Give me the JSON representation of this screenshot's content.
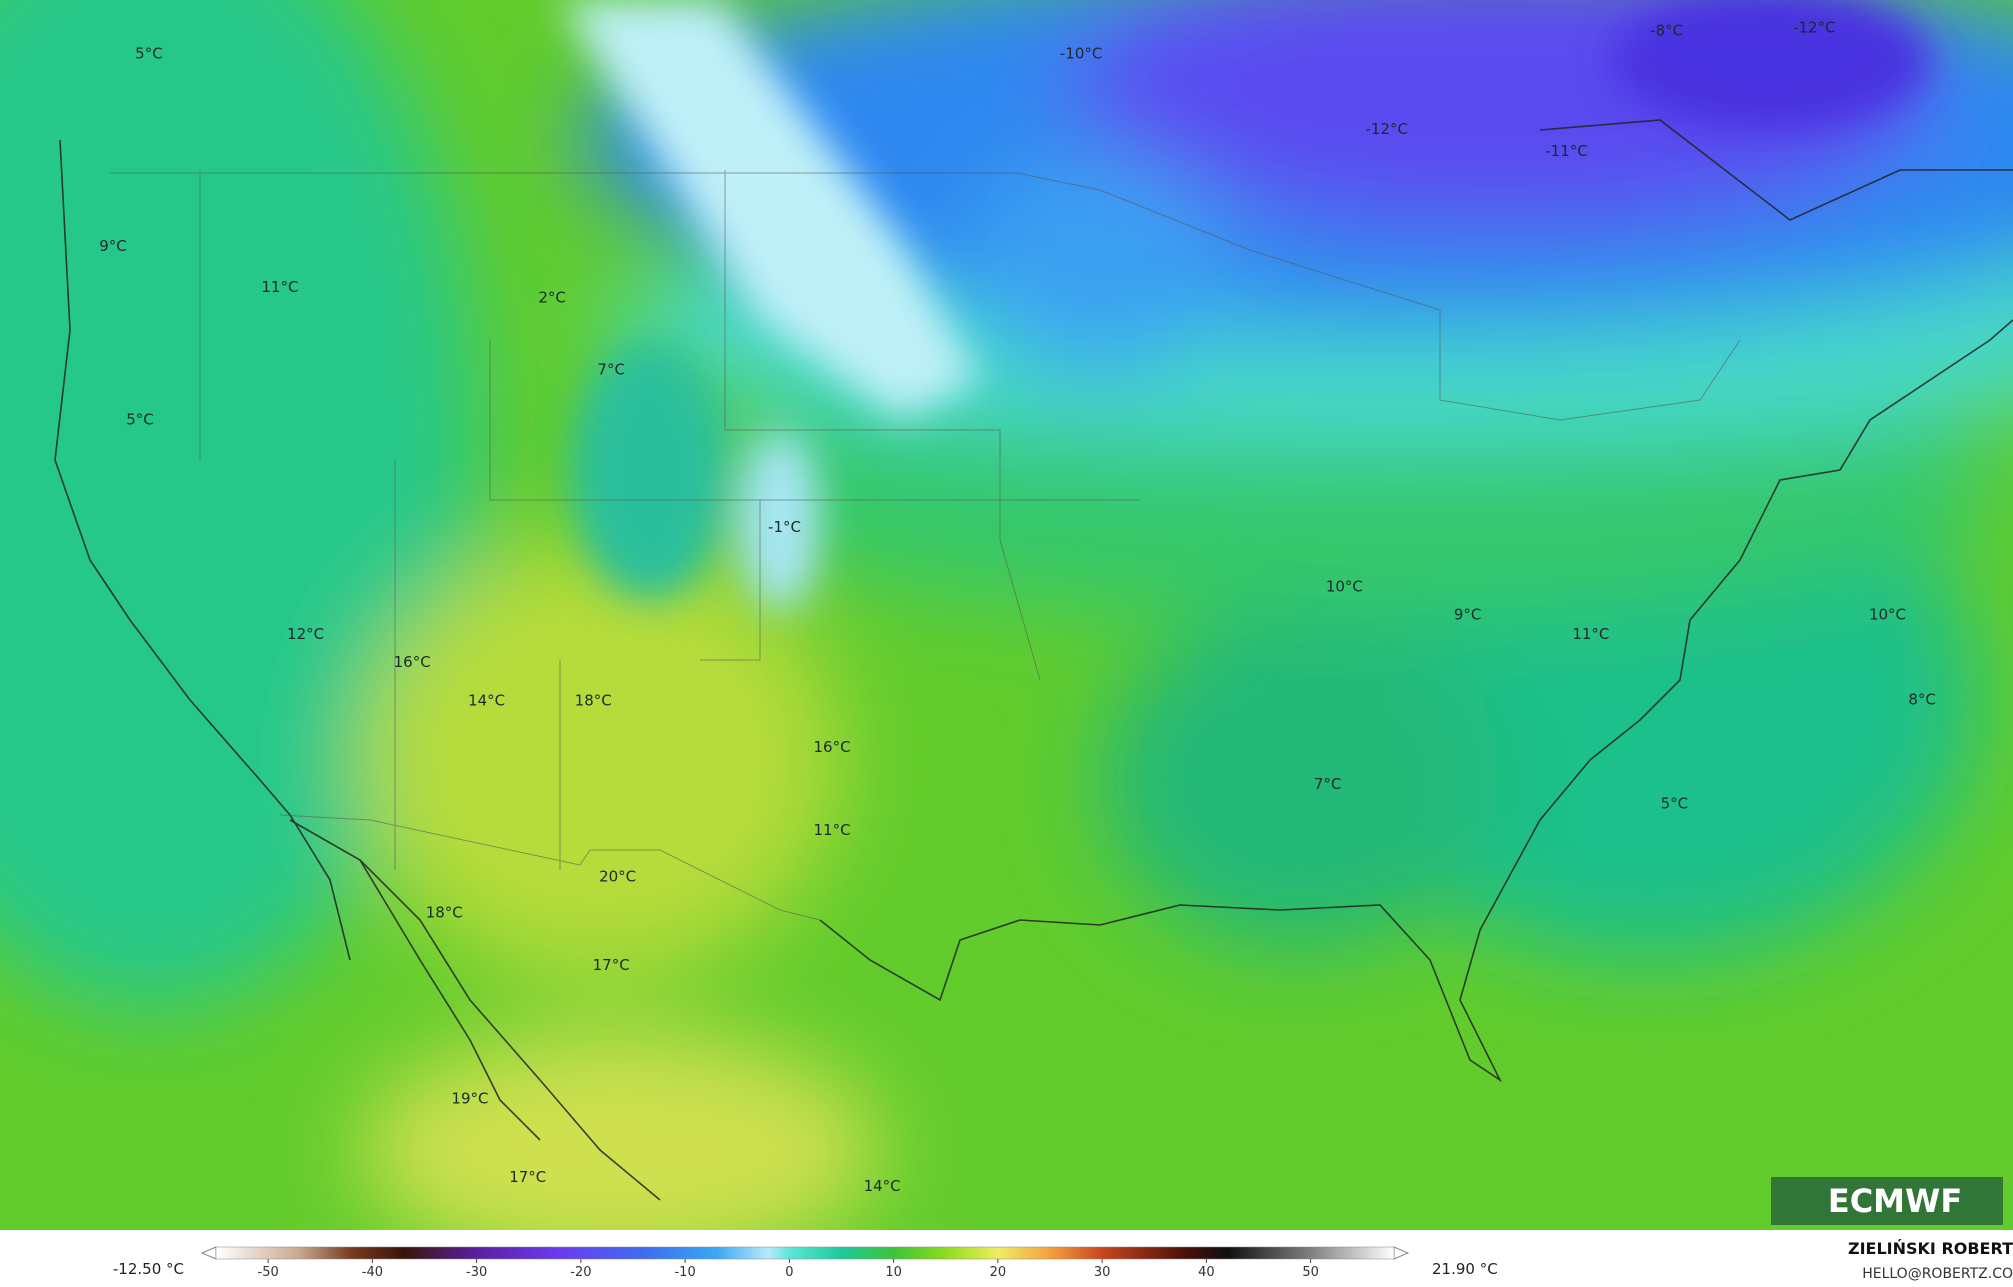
{
  "map": {
    "labels": [
      "5°C",
      "-10°C",
      "-8°C",
      "-12°C",
      "-12°C",
      "-11°C",
      "9°C",
      "11°C",
      "2°C",
      "7°C",
      "5°C",
      "-1°C",
      "10°C",
      "9°C",
      "11°C",
      "10°C",
      "12°C",
      "16°C",
      "14°C",
      "18°C",
      "16°C",
      "8°C",
      "7°C",
      "11°C",
      "5°C",
      "20°C",
      "18°C",
      "17°C",
      "19°C",
      "17°C",
      "14°C"
    ],
    "logo": "ECMWF"
  },
  "colorbar": {
    "min_label": "-12.50 °C",
    "max_label": "21.90 °C",
    "lim": [
      -55,
      58
    ],
    "ticks": [
      -50,
      -40,
      -30,
      -20,
      -10,
      0,
      10,
      20,
      30,
      40,
      50
    ],
    "stops": [
      [
        -55,
        "#ffffff"
      ],
      [
        -47,
        "#c8a890"
      ],
      [
        -42,
        "#7a3a22"
      ],
      [
        -37,
        "#3a1408"
      ],
      [
        -30,
        "#5a1fa0"
      ],
      [
        -22,
        "#6a3cf0"
      ],
      [
        -14,
        "#3f6cf0"
      ],
      [
        -7,
        "#3aa8f5"
      ],
      [
        -2,
        "#b8eaf8"
      ],
      [
        0,
        "#5de6d8"
      ],
      [
        5,
        "#1ec99a"
      ],
      [
        10,
        "#3cc43a"
      ],
      [
        15,
        "#8fdc1e"
      ],
      [
        20,
        "#f0ec60"
      ],
      [
        25,
        "#f5a040"
      ],
      [
        30,
        "#c8461e"
      ],
      [
        38,
        "#4a1008"
      ],
      [
        42,
        "#101010"
      ],
      [
        50,
        "#808080"
      ],
      [
        58,
        "#ffffff"
      ]
    ]
  },
  "credit": {
    "author": "ZIELIŃSKI ROBERT",
    "email": "HELLO@ROBERTZ.CO"
  }
}
